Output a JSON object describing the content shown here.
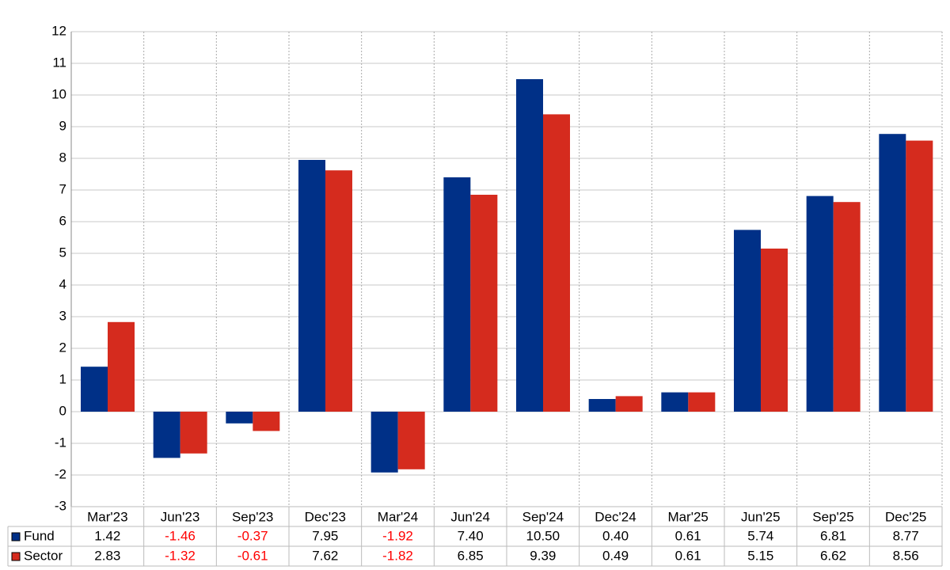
{
  "chart_data": {
    "type": "bar",
    "categories": [
      "Mar'23",
      "Jun'23",
      "Sep'23",
      "Dec'23",
      "Mar'24",
      "Jun'24",
      "Sep'24",
      "Dec'24",
      "Mar'25",
      "Jun'25",
      "Sep'25",
      "Dec'25"
    ],
    "series": [
      {
        "name": "Fund",
        "color": "#003087",
        "values": [
          1.42,
          -1.46,
          -0.37,
          7.95,
          -1.92,
          7.4,
          10.5,
          0.4,
          0.61,
          5.74,
          6.81,
          8.77
        ],
        "value_labels": [
          "1.42",
          "-1.46",
          "-0.37",
          "7.95",
          "-1.92",
          "7.40",
          "10.50",
          "0.40",
          "0.61",
          "5.74",
          "6.81",
          "8.77"
        ]
      },
      {
        "name": "Sector",
        "color": "#d52b1e",
        "values": [
          2.83,
          -1.32,
          -0.61,
          7.62,
          -1.82,
          6.85,
          9.39,
          0.49,
          0.61,
          5.15,
          6.62,
          8.56
        ],
        "value_labels": [
          "2.83",
          "-1.32",
          "-0.61",
          "7.62",
          "-1.82",
          "6.85",
          "9.39",
          "0.49",
          "0.61",
          "5.15",
          "6.62",
          "8.56"
        ]
      }
    ],
    "ylim": [
      -3,
      12
    ],
    "yticks": [
      -3,
      -2,
      -1,
      0,
      1,
      2,
      3,
      4,
      5,
      6,
      7,
      8,
      9,
      10,
      11,
      12
    ],
    "grid": true,
    "negative_label_color": "#ff0000"
  }
}
